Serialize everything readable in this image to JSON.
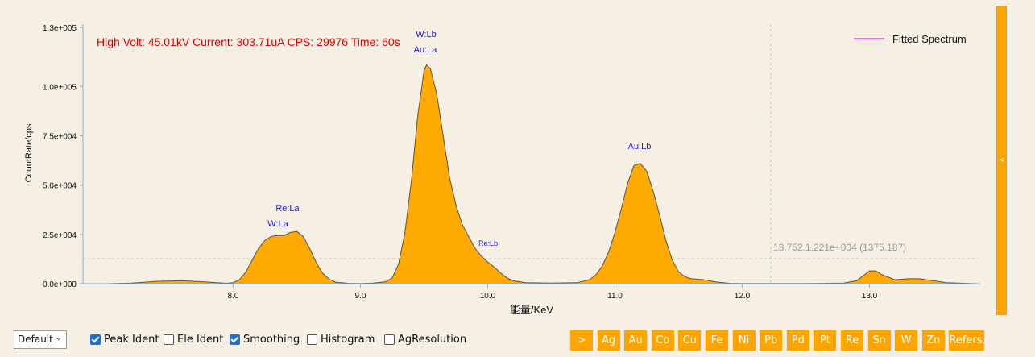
{
  "chart_data": {
    "type": "area",
    "info": "High Volt: 45.01kV  Current: 303.71uA  CPS: 29976  Time: 60s",
    "x_label": "能量/KeV",
    "y_label": "CountRate/cps",
    "cursor_readout": "13.752,1.221e+004 (1375.187)",
    "peak_labels": [
      "W:Lb",
      "Au:La",
      "Re:La",
      "W:La",
      "Re:Lb",
      "Au:Lb"
    ],
    "x": [
      6.85,
      7.0,
      7.2,
      7.4,
      7.6,
      7.8,
      7.95,
      8.0,
      8.05,
      8.1,
      8.15,
      8.2,
      8.25,
      8.3,
      8.35,
      8.4,
      8.45,
      8.5,
      8.55,
      8.6,
      8.65,
      8.7,
      8.75,
      8.8,
      8.9,
      9.0,
      9.1,
      9.2,
      9.25,
      9.3,
      9.35,
      9.4,
      9.45,
      9.5,
      9.52,
      9.55,
      9.6,
      9.65,
      9.7,
      9.75,
      9.8,
      9.85,
      9.9,
      9.95,
      10.0,
      10.05,
      10.1,
      10.15,
      10.2,
      10.3,
      10.5,
      10.7,
      10.8,
      10.85,
      10.9,
      10.95,
      11.0,
      11.05,
      11.1,
      11.15,
      11.2,
      11.25,
      11.3,
      11.35,
      11.4,
      11.45,
      11.5,
      11.55,
      11.6,
      11.7,
      11.8,
      11.9,
      12.0,
      12.5,
      12.8,
      12.9,
      12.95,
      13.0,
      13.05,
      13.1,
      13.2,
      13.3,
      13.4,
      13.5,
      13.6,
      13.7,
      13.85
    ],
    "series": [
      {
        "name": "Fitted Spectrum",
        "color": "#ffaa00",
        "legend_color": "#ff66ff",
        "values": [
          0,
          0,
          300,
          1200,
          1500,
          800,
          200,
          500,
          2000,
          6000,
          12000,
          18000,
          22000,
          24000,
          24500,
          24500,
          26000,
          26500,
          24000,
          18000,
          11000,
          5500,
          2500,
          800,
          200,
          100,
          300,
          1000,
          3000,
          10000,
          26000,
          52000,
          85000,
          108000,
          111000,
          109000,
          96000,
          75000,
          54000,
          40000,
          30000,
          24000,
          18000,
          14000,
          11000,
          8500,
          5500,
          3000,
          1500,
          500,
          300,
          500,
          2000,
          4500,
          9000,
          16000,
          26000,
          38000,
          51000,
          60000,
          61000,
          57000,
          47000,
          35000,
          22000,
          12000,
          6000,
          3500,
          2500,
          2000,
          800,
          200,
          100,
          100,
          300,
          1500,
          4000,
          6500,
          6500,
          4500,
          2000,
          2500,
          2500,
          1500,
          500,
          300,
          0
        ]
      }
    ],
    "xlim": [
      6.82,
      13.87
    ],
    "ylim": [
      0,
      130000
    ],
    "xticks": [
      {
        "value": 8,
        "label": "8.0"
      },
      {
        "value": 9,
        "label": "9.0"
      },
      {
        "value": 10,
        "label": "10.0"
      },
      {
        "value": 11,
        "label": "11.0"
      },
      {
        "value": 12,
        "label": "12.0"
      },
      {
        "value": 13,
        "label": "13.0"
      }
    ],
    "yticks": [
      {
        "value": 0,
        "label": "0.0e+000"
      },
      {
        "value": 25000,
        "label": "2.5e+004"
      },
      {
        "value": 50000,
        "label": "5.0e+004"
      },
      {
        "value": 75000,
        "label": "7.5e+004"
      },
      {
        "value": 100000,
        "label": "1.0e+005"
      },
      {
        "value": 130000,
        "label": "1.3e+005"
      }
    ]
  },
  "controls": {
    "preset": "Default",
    "checkboxes": [
      {
        "label": "Peak Ident",
        "checked": true
      },
      {
        "label": "Ele Ident",
        "checked": false
      },
      {
        "label": "Smoothing",
        "checked": true
      },
      {
        "label": "Histogram",
        "checked": false
      },
      {
        "label": "AgResolution",
        "checked": false
      }
    ],
    "buttons": [
      ">",
      "Ag",
      "Au",
      "Co",
      "Cu",
      "Fe",
      "Ni",
      "Pb",
      "Pd",
      "Pt",
      "Re",
      "Sn",
      "W",
      "Zn",
      "Refers.."
    ],
    "scroll_arrow": "<"
  }
}
